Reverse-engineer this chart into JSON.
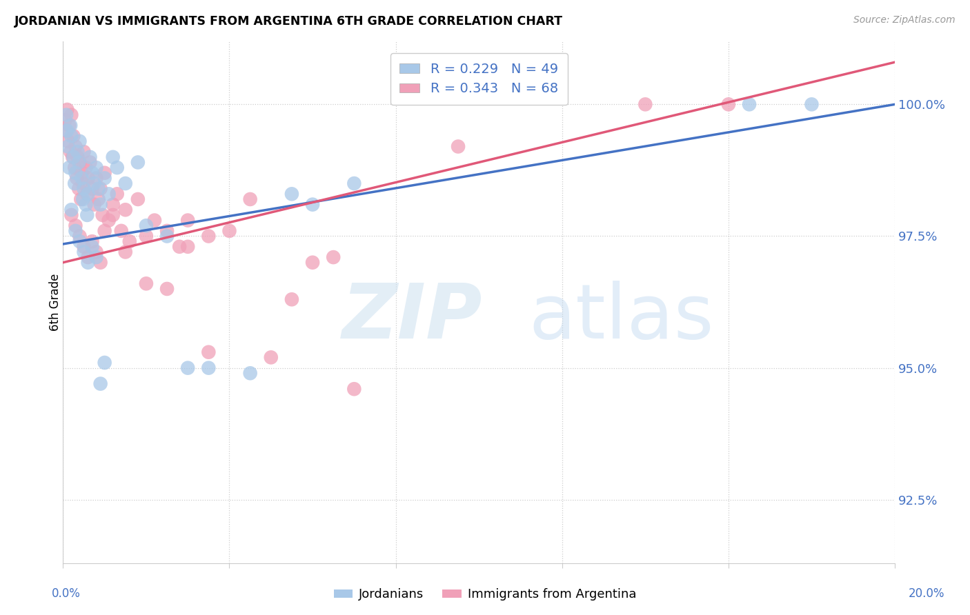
{
  "title": "JORDANIAN VS IMMIGRANTS FROM ARGENTINA 6TH GRADE CORRELATION CHART",
  "source": "Source: ZipAtlas.com",
  "ylabel": "6th Grade",
  "xlim": [
    0.0,
    20.0
  ],
  "ylim": [
    91.3,
    101.2
  ],
  "yticks": [
    92.5,
    95.0,
    97.5,
    100.0
  ],
  "ytick_labels": [
    "92.5%",
    "95.0%",
    "97.5%",
    "100.0%"
  ],
  "jordanians_R": 0.229,
  "jordanians_N": 49,
  "argentina_R": 0.343,
  "argentina_N": 68,
  "blue_color": "#a8c8e8",
  "pink_color": "#f0a0b8",
  "blue_line_color": "#4472c4",
  "pink_line_color": "#e05878",
  "jordanians_x": [
    0.08,
    0.1,
    0.12,
    0.15,
    0.18,
    0.2,
    0.25,
    0.28,
    0.3,
    0.35,
    0.38,
    0.4,
    0.45,
    0.48,
    0.5,
    0.55,
    0.58,
    0.6,
    0.65,
    0.7,
    0.75,
    0.8,
    0.85,
    0.9,
    1.0,
    1.1,
    1.2,
    1.3,
    1.5,
    1.8,
    2.0,
    2.5,
    3.0,
    3.5,
    4.5,
    5.5,
    6.0,
    7.0,
    0.2,
    0.3,
    0.4,
    0.5,
    0.6,
    0.7,
    0.8,
    0.9,
    1.0,
    16.5,
    18.0
  ],
  "jordanians_y": [
    99.8,
    99.5,
    99.2,
    98.8,
    99.6,
    99.4,
    99.0,
    98.5,
    98.7,
    99.1,
    98.9,
    99.3,
    98.6,
    98.2,
    98.4,
    98.1,
    97.9,
    98.3,
    99.0,
    98.7,
    98.5,
    98.8,
    98.4,
    98.1,
    98.6,
    98.3,
    99.0,
    98.8,
    98.5,
    98.9,
    97.7,
    97.5,
    95.0,
    95.0,
    94.9,
    98.3,
    98.1,
    98.5,
    98.0,
    97.6,
    97.4,
    97.2,
    97.0,
    97.3,
    97.1,
    94.7,
    95.1,
    100.0,
    100.0
  ],
  "argentina_x": [
    0.05,
    0.08,
    0.1,
    0.12,
    0.15,
    0.18,
    0.2,
    0.23,
    0.25,
    0.28,
    0.3,
    0.33,
    0.35,
    0.38,
    0.4,
    0.43,
    0.45,
    0.48,
    0.5,
    0.55,
    0.58,
    0.6,
    0.65,
    0.7,
    0.75,
    0.8,
    0.85,
    0.9,
    0.95,
    1.0,
    1.1,
    1.2,
    1.3,
    1.4,
    1.5,
    1.6,
    1.8,
    2.0,
    2.2,
    2.5,
    2.8,
    3.0,
    3.5,
    4.0,
    5.0,
    6.0,
    0.2,
    0.3,
    0.4,
    0.5,
    0.6,
    0.7,
    0.8,
    0.9,
    1.0,
    1.2,
    1.5,
    2.0,
    2.5,
    3.0,
    3.5,
    5.5,
    7.0,
    9.5,
    14.0,
    16.0,
    4.5,
    6.5
  ],
  "argentina_y": [
    99.7,
    99.5,
    99.9,
    99.3,
    99.6,
    99.1,
    99.8,
    99.0,
    99.4,
    98.8,
    99.2,
    98.6,
    99.0,
    98.4,
    98.9,
    98.2,
    98.7,
    98.5,
    99.1,
    98.8,
    98.3,
    98.6,
    98.9,
    98.4,
    98.1,
    98.6,
    98.2,
    98.4,
    97.9,
    98.7,
    97.8,
    98.1,
    98.3,
    97.6,
    98.0,
    97.4,
    98.2,
    97.5,
    97.8,
    97.6,
    97.3,
    97.8,
    97.5,
    97.6,
    95.2,
    97.0,
    97.9,
    97.7,
    97.5,
    97.3,
    97.1,
    97.4,
    97.2,
    97.0,
    97.6,
    97.9,
    97.2,
    96.6,
    96.5,
    97.3,
    95.3,
    96.3,
    94.6,
    99.2,
    100.0,
    100.0,
    98.2,
    97.1
  ]
}
